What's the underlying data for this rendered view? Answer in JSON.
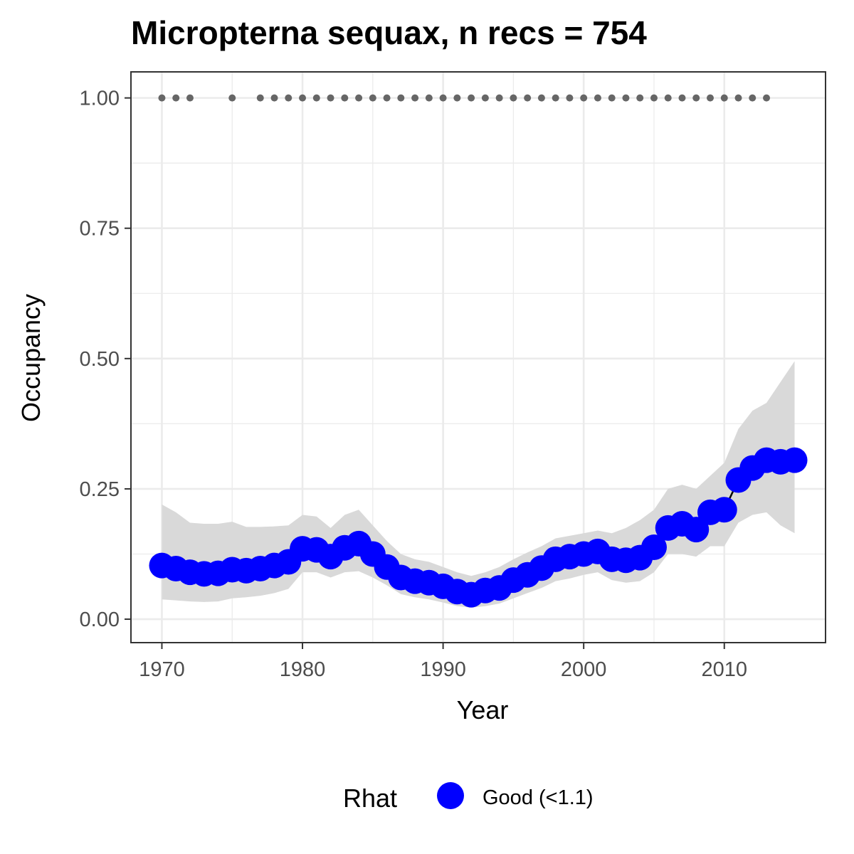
{
  "chart_data": {
    "type": "line",
    "title": "Micropterna sequax, n recs = 754",
    "xlabel": "Year",
    "ylabel": "Occupancy",
    "xlim": [
      1967.8,
      2017.2
    ],
    "ylim": [
      -0.045,
      1.05
    ],
    "x_ticks": [
      1970,
      1980,
      1990,
      2000,
      2010
    ],
    "x_tick_labels": [
      "1970",
      "1980",
      "1990",
      "2000",
      "2010"
    ],
    "y_ticks": [
      0,
      0.25,
      0.5,
      0.75,
      1.0
    ],
    "y_tick_labels": [
      "0.00",
      "0.25",
      "0.50",
      "0.75",
      "1.00"
    ],
    "grid": true,
    "legend": {
      "position": "bottom",
      "title": "Rhat",
      "entries": [
        {
          "label": "Good (<1.1)",
          "color": "#0000ff"
        }
      ]
    },
    "series": [
      {
        "name": "Good (<1.1)",
        "color": "#0000ff",
        "x": [
          1970,
          1971,
          1972,
          1973,
          1974,
          1975,
          1976,
          1977,
          1978,
          1979,
          1980,
          1981,
          1982,
          1983,
          1984,
          1985,
          1986,
          1987,
          1988,
          1989,
          1990,
          1991,
          1992,
          1993,
          1994,
          1995,
          1996,
          1997,
          1998,
          1999,
          2000,
          2001,
          2002,
          2003,
          2004,
          2005,
          2006,
          2007,
          2008,
          2009,
          2010,
          2011,
          2012,
          2013,
          2014,
          2015
        ],
        "y": [
          0.103,
          0.097,
          0.09,
          0.087,
          0.088,
          0.095,
          0.093,
          0.097,
          0.103,
          0.11,
          0.135,
          0.133,
          0.12,
          0.137,
          0.145,
          0.125,
          0.1,
          0.08,
          0.073,
          0.07,
          0.063,
          0.053,
          0.047,
          0.055,
          0.06,
          0.075,
          0.085,
          0.098,
          0.115,
          0.12,
          0.125,
          0.13,
          0.115,
          0.113,
          0.118,
          0.138,
          0.175,
          0.183,
          0.172,
          0.205,
          0.21,
          0.267,
          0.29,
          0.305,
          0.302,
          0.305
        ]
      }
    ],
    "credible_interval": {
      "color": "#d9d9d9",
      "upper": [
        0.22,
        0.205,
        0.185,
        0.183,
        0.183,
        0.187,
        0.177,
        0.177,
        0.178,
        0.18,
        0.2,
        0.197,
        0.175,
        0.2,
        0.21,
        0.18,
        0.15,
        0.125,
        0.115,
        0.11,
        0.1,
        0.09,
        0.083,
        0.09,
        0.1,
        0.115,
        0.128,
        0.14,
        0.155,
        0.16,
        0.165,
        0.17,
        0.165,
        0.175,
        0.19,
        0.21,
        0.25,
        0.258,
        0.25,
        0.275,
        0.3,
        0.365,
        0.4,
        0.415,
        0.455,
        0.495
      ],
      "lower": [
        0.038,
        0.036,
        0.034,
        0.033,
        0.034,
        0.04,
        0.042,
        0.045,
        0.05,
        0.058,
        0.09,
        0.09,
        0.08,
        0.09,
        0.092,
        0.08,
        0.065,
        0.048,
        0.042,
        0.038,
        0.032,
        0.025,
        0.022,
        0.025,
        0.03,
        0.04,
        0.05,
        0.06,
        0.073,
        0.078,
        0.085,
        0.09,
        0.075,
        0.07,
        0.073,
        0.09,
        0.125,
        0.125,
        0.12,
        0.14,
        0.14,
        0.185,
        0.2,
        0.205,
        0.18,
        0.165
      ]
    },
    "records": {
      "color": "#666666",
      "y": 1.0,
      "x": [
        1970,
        1971,
        1972,
        1975,
        1977,
        1978,
        1979,
        1980,
        1981,
        1982,
        1983,
        1984,
        1985,
        1986,
        1987,
        1988,
        1989,
        1990,
        1991,
        1992,
        1993,
        1994,
        1995,
        1996,
        1997,
        1998,
        1999,
        2000,
        2001,
        2002,
        2003,
        2004,
        2005,
        2006,
        2007,
        2008,
        2009,
        2010,
        2011,
        2012,
        2013
      ]
    }
  }
}
